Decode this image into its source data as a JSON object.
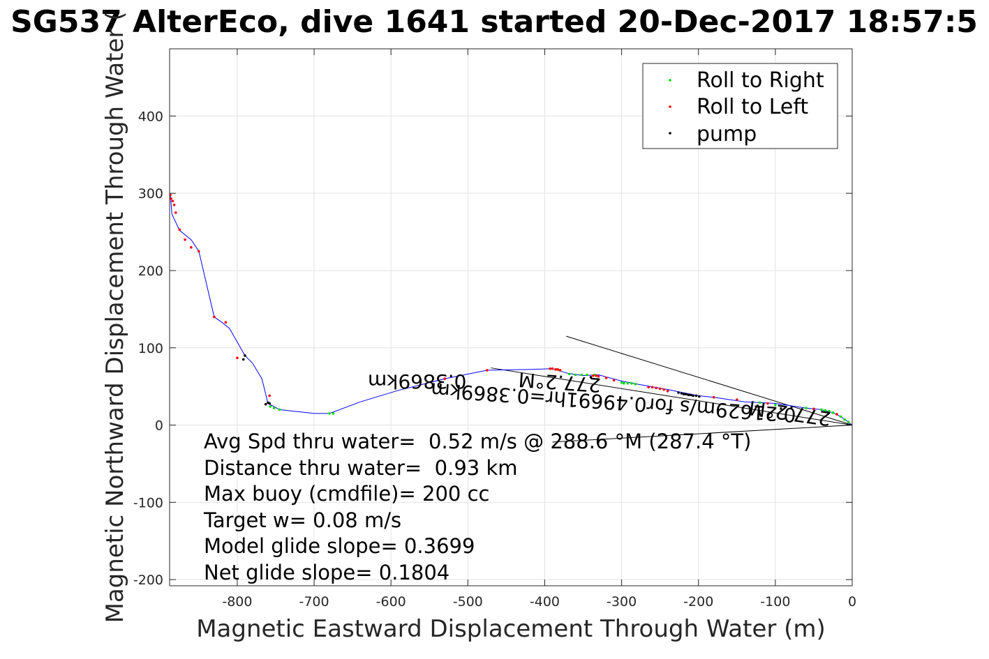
{
  "chart_data": {
    "type": "scatter",
    "title": "SG537 AlterEco, dive 1641 started 20-Dec-2017 18:57:5",
    "xlabel": "Magnetic Eastward Displacement Through Water (m)",
    "ylabel": "Magnetic Northward Displacement Through Water (",
    "xlim": [
      -888,
      0
    ],
    "ylim": [
      -208,
      487
    ],
    "xticks": [
      -800,
      -700,
      -600,
      -500,
      -400,
      -300,
      -200,
      -100,
      0
    ],
    "yticks": [
      -200,
      -100,
      0,
      100,
      200,
      300,
      400
    ],
    "grid": true,
    "legend_position": "top-right",
    "legend": [
      {
        "name": "Roll to Right",
        "color": "#00dd00"
      },
      {
        "name": "Roll to Left",
        "color": "#ff0000"
      },
      {
        "name": "pump",
        "color": "#000000"
      }
    ],
    "track": {
      "color": "#0000ff",
      "x": [
        0,
        -5,
        -15,
        -25,
        -40,
        -60,
        -100,
        -140,
        -180,
        -200,
        -240,
        -280,
        -300,
        -330,
        -350,
        -370,
        -390,
        -420,
        -475,
        -530,
        -590,
        -640,
        -680,
        -700,
        -745,
        -760,
        -768,
        -780,
        -790,
        -810,
        -820,
        -830,
        -850,
        -860,
        -875,
        -885,
        -887
      ],
      "y": [
        0,
        4,
        11,
        16,
        20,
        22,
        28,
        30,
        36,
        38,
        46,
        53,
        57,
        65,
        64,
        67,
        73,
        72,
        71,
        60,
        45,
        30,
        15,
        15,
        20,
        28,
        60,
        80,
        90,
        125,
        133,
        140,
        225,
        240,
        252,
        273,
        298
      ]
    },
    "roll_right": {
      "x": [
        -5,
        -10,
        -15,
        -20,
        -25,
        -30,
        -35,
        -40,
        -60,
        -100,
        -120,
        -282,
        -287,
        -292,
        -297,
        -300,
        -335,
        -345,
        -352,
        -360,
        -368,
        -380,
        -385,
        -745,
        -752,
        -757,
        -675,
        -680
      ],
      "y": [
        4,
        7,
        11,
        14,
        16,
        18,
        19,
        20,
        22,
        26,
        29,
        53,
        54,
        54,
        54,
        55,
        65,
        65,
        65,
        65,
        66,
        71,
        72,
        20,
        22,
        24,
        15,
        15
      ]
    },
    "roll_left": {
      "x": [
        -20,
        -50,
        -110,
        -150,
        -180,
        -240,
        -245,
        -250,
        -255,
        -260,
        -265,
        -310,
        -320,
        -330,
        -333,
        -337,
        -380,
        -383,
        -386,
        -390,
        -393,
        -475,
        -530,
        -758,
        -800,
        -850,
        -860,
        -868,
        -875,
        -880,
        -882,
        -884,
        -886,
        -887,
        -830,
        -815
      ],
      "y": [
        14,
        21,
        28,
        33,
        36,
        44,
        46,
        47,
        48,
        49,
        49,
        58,
        61,
        63,
        64,
        64,
        71,
        72,
        72,
        73,
        73,
        71,
        60,
        38,
        87,
        225,
        230,
        240,
        253,
        275,
        285,
        290,
        293,
        298,
        140,
        133
      ]
    },
    "pump": {
      "x": [
        -199,
        -203,
        -207,
        -210,
        -213,
        -216,
        -219,
        -222,
        -226,
        -340,
        -758,
        -760,
        -763,
        -790,
        -792
      ],
      "y": [
        37,
        38,
        38,
        39,
        39,
        40,
        40,
        41,
        42,
        62,
        28,
        29,
        27,
        90,
        85
      ]
    },
    "lines": [
      {
        "from": [
          0,
          0
        ],
        "to": [
          -372,
          115
        ]
      },
      {
        "from": [
          0,
          0
        ],
        "to": [
          -390,
          -22
        ]
      },
      {
        "from": [
          0,
          0
        ],
        "to": [
          -470,
          74
        ]
      }
    ],
    "annotations": [
      {
        "text": "0.3869km",
        "x": -566,
        "y": 65,
        "angle": 180
      },
      {
        "text": "277.2°M",
        "x": -380,
        "y": 64,
        "angle": 184
      },
      {
        "text": "0.21629m/s for0.49691hr=0.3869km",
        "x": -310,
        "y": 38,
        "angle": 184
      },
      {
        "text": "277.2°M",
        "x": -80,
        "y": 24,
        "angle": 188
      }
    ],
    "stats": [
      "Avg Spd thru water=  0.52 m/s @ 288.6 °M (287.4 °T)",
      "Distance thru water=  0.93 km",
      "Max buoy (cmdfile)= 200 cc",
      "Target w= 0.08 m/s",
      "Model glide slope= 0.3699",
      "Net glide slope= 0.1804"
    ]
  }
}
